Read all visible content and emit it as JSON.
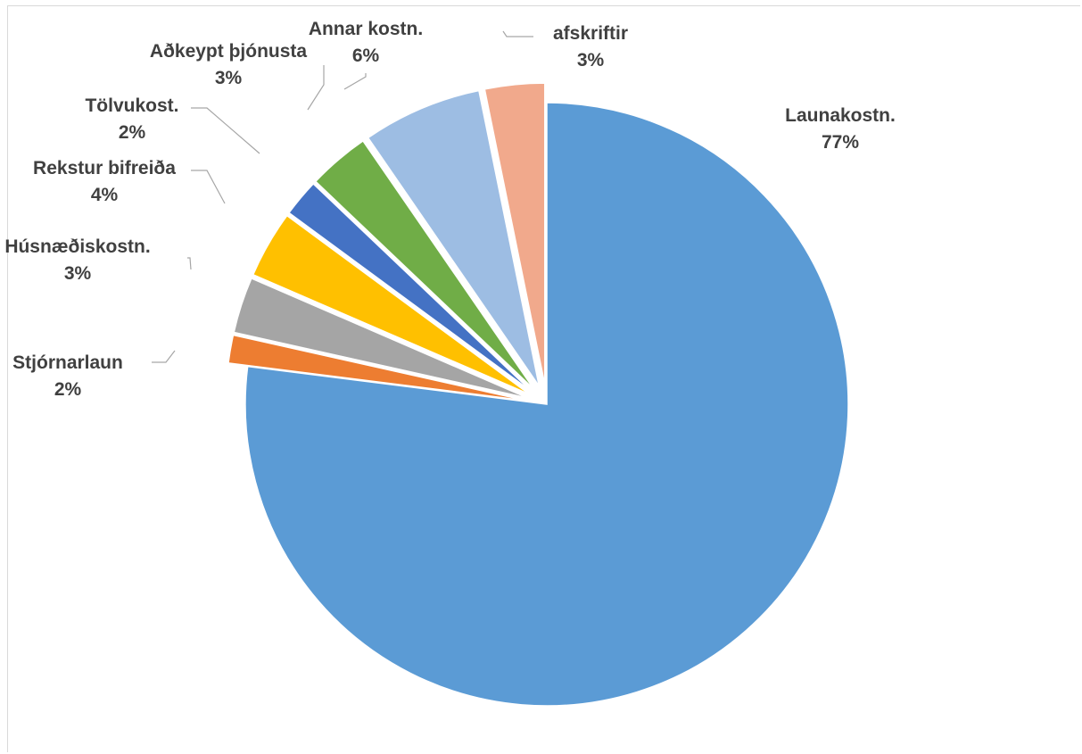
{
  "chart_data": {
    "type": "pie",
    "exploded": true,
    "start_angle_deg": 0,
    "direction": "clockwise",
    "slices": [
      {
        "name": "Launakostn.",
        "value": 77,
        "label_pct": "77%",
        "color": "#5b9bd5"
      },
      {
        "name": "Stjórnarlaun",
        "value": 1.5,
        "label_pct": "2%",
        "color": "#ed7d31"
      },
      {
        "name": "Húsnæðiskostn.",
        "value": 3,
        "label_pct": "3%",
        "color": "#a5a5a5"
      },
      {
        "name": "Rekstur bifreiða",
        "value": 3.6,
        "label_pct": "4%",
        "color": "#ffc000"
      },
      {
        "name": "Tölvukost.",
        "value": 2,
        "label_pct": "2%",
        "color": "#4472c4"
      },
      {
        "name": "Aðkeypt þjónusta",
        "value": 3.3,
        "label_pct": "3%",
        "color": "#70ad47"
      },
      {
        "name": "Annar kostn.",
        "value": 6.4,
        "label_pct": "6%",
        "color": "#9dbde3"
      },
      {
        "name": "afskriftir",
        "value": 3.2,
        "label_pct": "3%",
        "color": "#f1a98c"
      }
    ]
  }
}
